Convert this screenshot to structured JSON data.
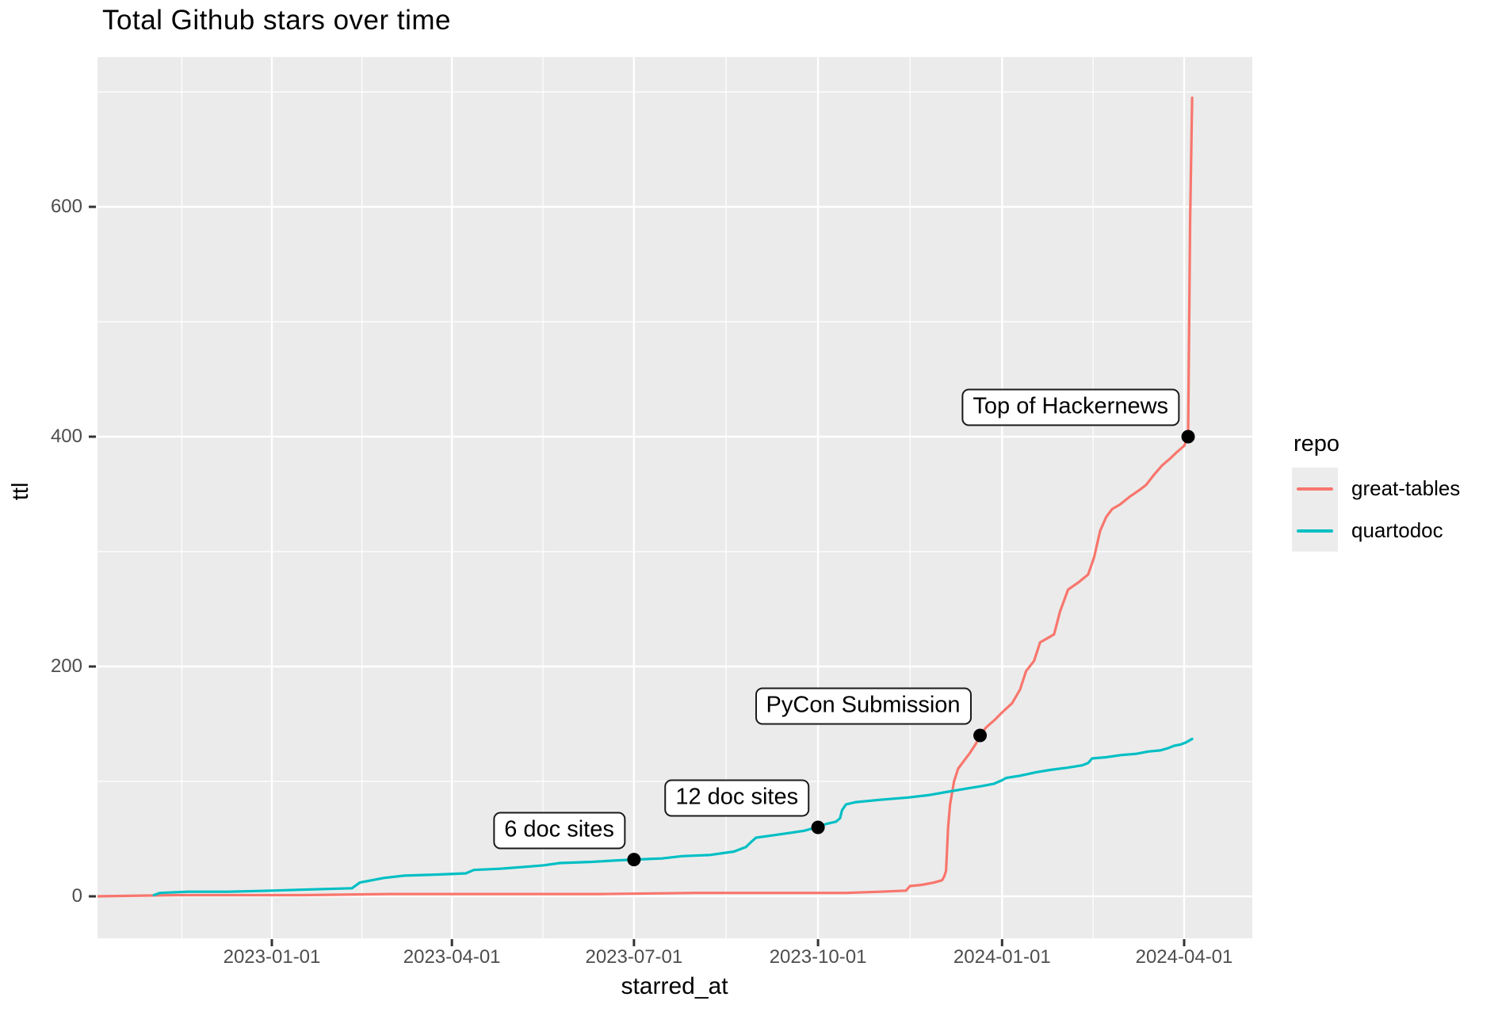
{
  "title": "Total Github stars over time",
  "axes": {
    "x": {
      "label": "starred_at",
      "ticks": [
        "2023-01-01",
        "2023-04-01",
        "2023-07-01",
        "2023-10-01",
        "2024-01-01",
        "2024-04-01"
      ]
    },
    "y": {
      "label": "ttl",
      "ticks": [
        0,
        200,
        400,
        600
      ]
    }
  },
  "legend": {
    "title": "repo",
    "items": [
      {
        "label": "great-tables",
        "color": "#F8766D"
      },
      {
        "label": "quartodoc",
        "color": "#00BFC4"
      }
    ]
  },
  "colors": {
    "panel_background": "#EBEBEB",
    "grid_major": "#FFFFFF",
    "grid_minor": "#FFFFFF",
    "tick_mark": "#333333",
    "tick_text": "#4d4d4d",
    "annotation_point": "#000000"
  },
  "chart_data": {
    "type": "line",
    "title": "Total Github stars over time",
    "xlabel": "starred_at",
    "ylabel": "ttl",
    "x_range": [
      "2022-10-05",
      "2024-05-10"
    ],
    "ylim": [
      0,
      700
    ],
    "x_ticks": [
      "2023-01-01",
      "2023-04-01",
      "2023-07-01",
      "2023-10-01",
      "2024-01-01",
      "2024-04-01"
    ],
    "y_ticks_major": [
      0,
      200,
      400,
      600
    ],
    "y_ticks_minor": [
      100,
      300,
      500,
      700
    ],
    "grid": true,
    "legend_position": "right",
    "series": [
      {
        "name": "great-tables",
        "color": "#F8766D",
        "points": [
          [
            "2022-10-05",
            0
          ],
          [
            "2022-11-15",
            1
          ],
          [
            "2023-01-15",
            1
          ],
          [
            "2023-03-01",
            2
          ],
          [
            "2023-06-15",
            2
          ],
          [
            "2023-08-01",
            3
          ],
          [
            "2023-10-15",
            3
          ],
          [
            "2023-11-01",
            4
          ],
          [
            "2023-11-14",
            5
          ],
          [
            "2023-11-16",
            9
          ],
          [
            "2023-11-22",
            10
          ],
          [
            "2023-11-28",
            12
          ],
          [
            "2023-12-02",
            14
          ],
          [
            "2023-12-03",
            17
          ],
          [
            "2023-12-04",
            22
          ],
          [
            "2023-12-05",
            60
          ],
          [
            "2023-12-06",
            80
          ],
          [
            "2023-12-08",
            100
          ],
          [
            "2023-12-10",
            111
          ],
          [
            "2023-12-13",
            118
          ],
          [
            "2023-12-16",
            125
          ],
          [
            "2023-12-19",
            133
          ],
          [
            "2023-12-21",
            140
          ],
          [
            "2023-12-24",
            147
          ],
          [
            "2023-12-28",
            153
          ],
          [
            "2024-01-01",
            160
          ],
          [
            "2024-01-06",
            168
          ],
          [
            "2024-01-10",
            180
          ],
          [
            "2024-01-13",
            196
          ],
          [
            "2024-01-17",
            205
          ],
          [
            "2024-01-20",
            221
          ],
          [
            "2024-01-24",
            225
          ],
          [
            "2024-01-27",
            228
          ],
          [
            "2024-01-30",
            248
          ],
          [
            "2024-02-03",
            267
          ],
          [
            "2024-02-08",
            273
          ],
          [
            "2024-02-13",
            280
          ],
          [
            "2024-02-16",
            295
          ],
          [
            "2024-02-19",
            318
          ],
          [
            "2024-02-22",
            330
          ],
          [
            "2024-02-25",
            337
          ],
          [
            "2024-02-29",
            341
          ],
          [
            "2024-03-05",
            348
          ],
          [
            "2024-03-10",
            354
          ],
          [
            "2024-03-13",
            358
          ],
          [
            "2024-03-17",
            367
          ],
          [
            "2024-03-21",
            375
          ],
          [
            "2024-03-25",
            381
          ],
          [
            "2024-03-28",
            386
          ],
          [
            "2024-04-01",
            392
          ],
          [
            "2024-04-02",
            396
          ],
          [
            "2024-04-03",
            400
          ],
          [
            "2024-04-04",
            590
          ],
          [
            "2024-04-05",
            695
          ]
        ]
      },
      {
        "name": "quartodoc",
        "color": "#00BFC4",
        "points": [
          [
            "2022-11-03",
            1
          ],
          [
            "2022-11-06",
            3
          ],
          [
            "2022-11-20",
            4
          ],
          [
            "2022-12-10",
            4
          ],
          [
            "2023-01-01",
            5
          ],
          [
            "2023-01-20",
            6
          ],
          [
            "2023-02-10",
            7
          ],
          [
            "2023-02-14",
            12
          ],
          [
            "2023-02-20",
            14
          ],
          [
            "2023-02-26",
            16
          ],
          [
            "2023-03-08",
            18
          ],
          [
            "2023-03-25",
            19
          ],
          [
            "2023-04-08",
            20
          ],
          [
            "2023-04-12",
            23
          ],
          [
            "2023-04-25",
            24
          ],
          [
            "2023-05-10",
            26
          ],
          [
            "2023-05-17",
            27
          ],
          [
            "2023-05-25",
            29
          ],
          [
            "2023-06-10",
            30
          ],
          [
            "2023-06-20",
            31
          ],
          [
            "2023-07-01",
            32
          ],
          [
            "2023-07-15",
            33
          ],
          [
            "2023-07-25",
            35
          ],
          [
            "2023-08-08",
            36
          ],
          [
            "2023-08-20",
            39
          ],
          [
            "2023-08-26",
            43
          ],
          [
            "2023-08-29",
            48
          ],
          [
            "2023-08-31",
            51
          ],
          [
            "2023-09-08",
            53
          ],
          [
            "2023-09-16",
            55
          ],
          [
            "2023-09-24",
            57
          ],
          [
            "2023-09-28",
            59
          ],
          [
            "2023-10-01",
            60
          ],
          [
            "2023-10-05",
            63
          ],
          [
            "2023-10-10",
            65
          ],
          [
            "2023-10-12",
            68
          ],
          [
            "2023-10-13",
            75
          ],
          [
            "2023-10-15",
            80
          ],
          [
            "2023-10-20",
            82
          ],
          [
            "2023-11-01",
            84
          ],
          [
            "2023-11-15",
            86
          ],
          [
            "2023-11-25",
            88
          ],
          [
            "2023-12-05",
            91
          ],
          [
            "2023-12-15",
            94
          ],
          [
            "2023-12-22",
            96
          ],
          [
            "2023-12-28",
            98
          ],
          [
            "2024-01-01",
            101
          ],
          [
            "2024-01-03",
            103
          ],
          [
            "2024-01-10",
            105
          ],
          [
            "2024-01-18",
            108
          ],
          [
            "2024-01-25",
            110
          ],
          [
            "2024-02-03",
            112
          ],
          [
            "2024-02-10",
            114
          ],
          [
            "2024-02-13",
            116
          ],
          [
            "2024-02-15",
            120
          ],
          [
            "2024-02-22",
            121
          ],
          [
            "2024-03-01",
            123
          ],
          [
            "2024-03-08",
            124
          ],
          [
            "2024-03-14",
            126
          ],
          [
            "2024-03-20",
            127
          ],
          [
            "2024-03-24",
            129
          ],
          [
            "2024-03-27",
            131
          ],
          [
            "2024-03-30",
            132
          ],
          [
            "2024-04-02",
            134
          ],
          [
            "2024-04-05",
            137
          ]
        ]
      }
    ],
    "annotations": [
      {
        "label": "6 doc sites",
        "date": "2023-07-01",
        "value": 32
      },
      {
        "label": "12 doc sites",
        "date": "2023-10-01",
        "value": 60
      },
      {
        "label": "PyCon Submission",
        "date": "2023-12-21",
        "value": 140
      },
      {
        "label": "Top of Hackernews",
        "date": "2024-04-03",
        "value": 400
      }
    ]
  }
}
